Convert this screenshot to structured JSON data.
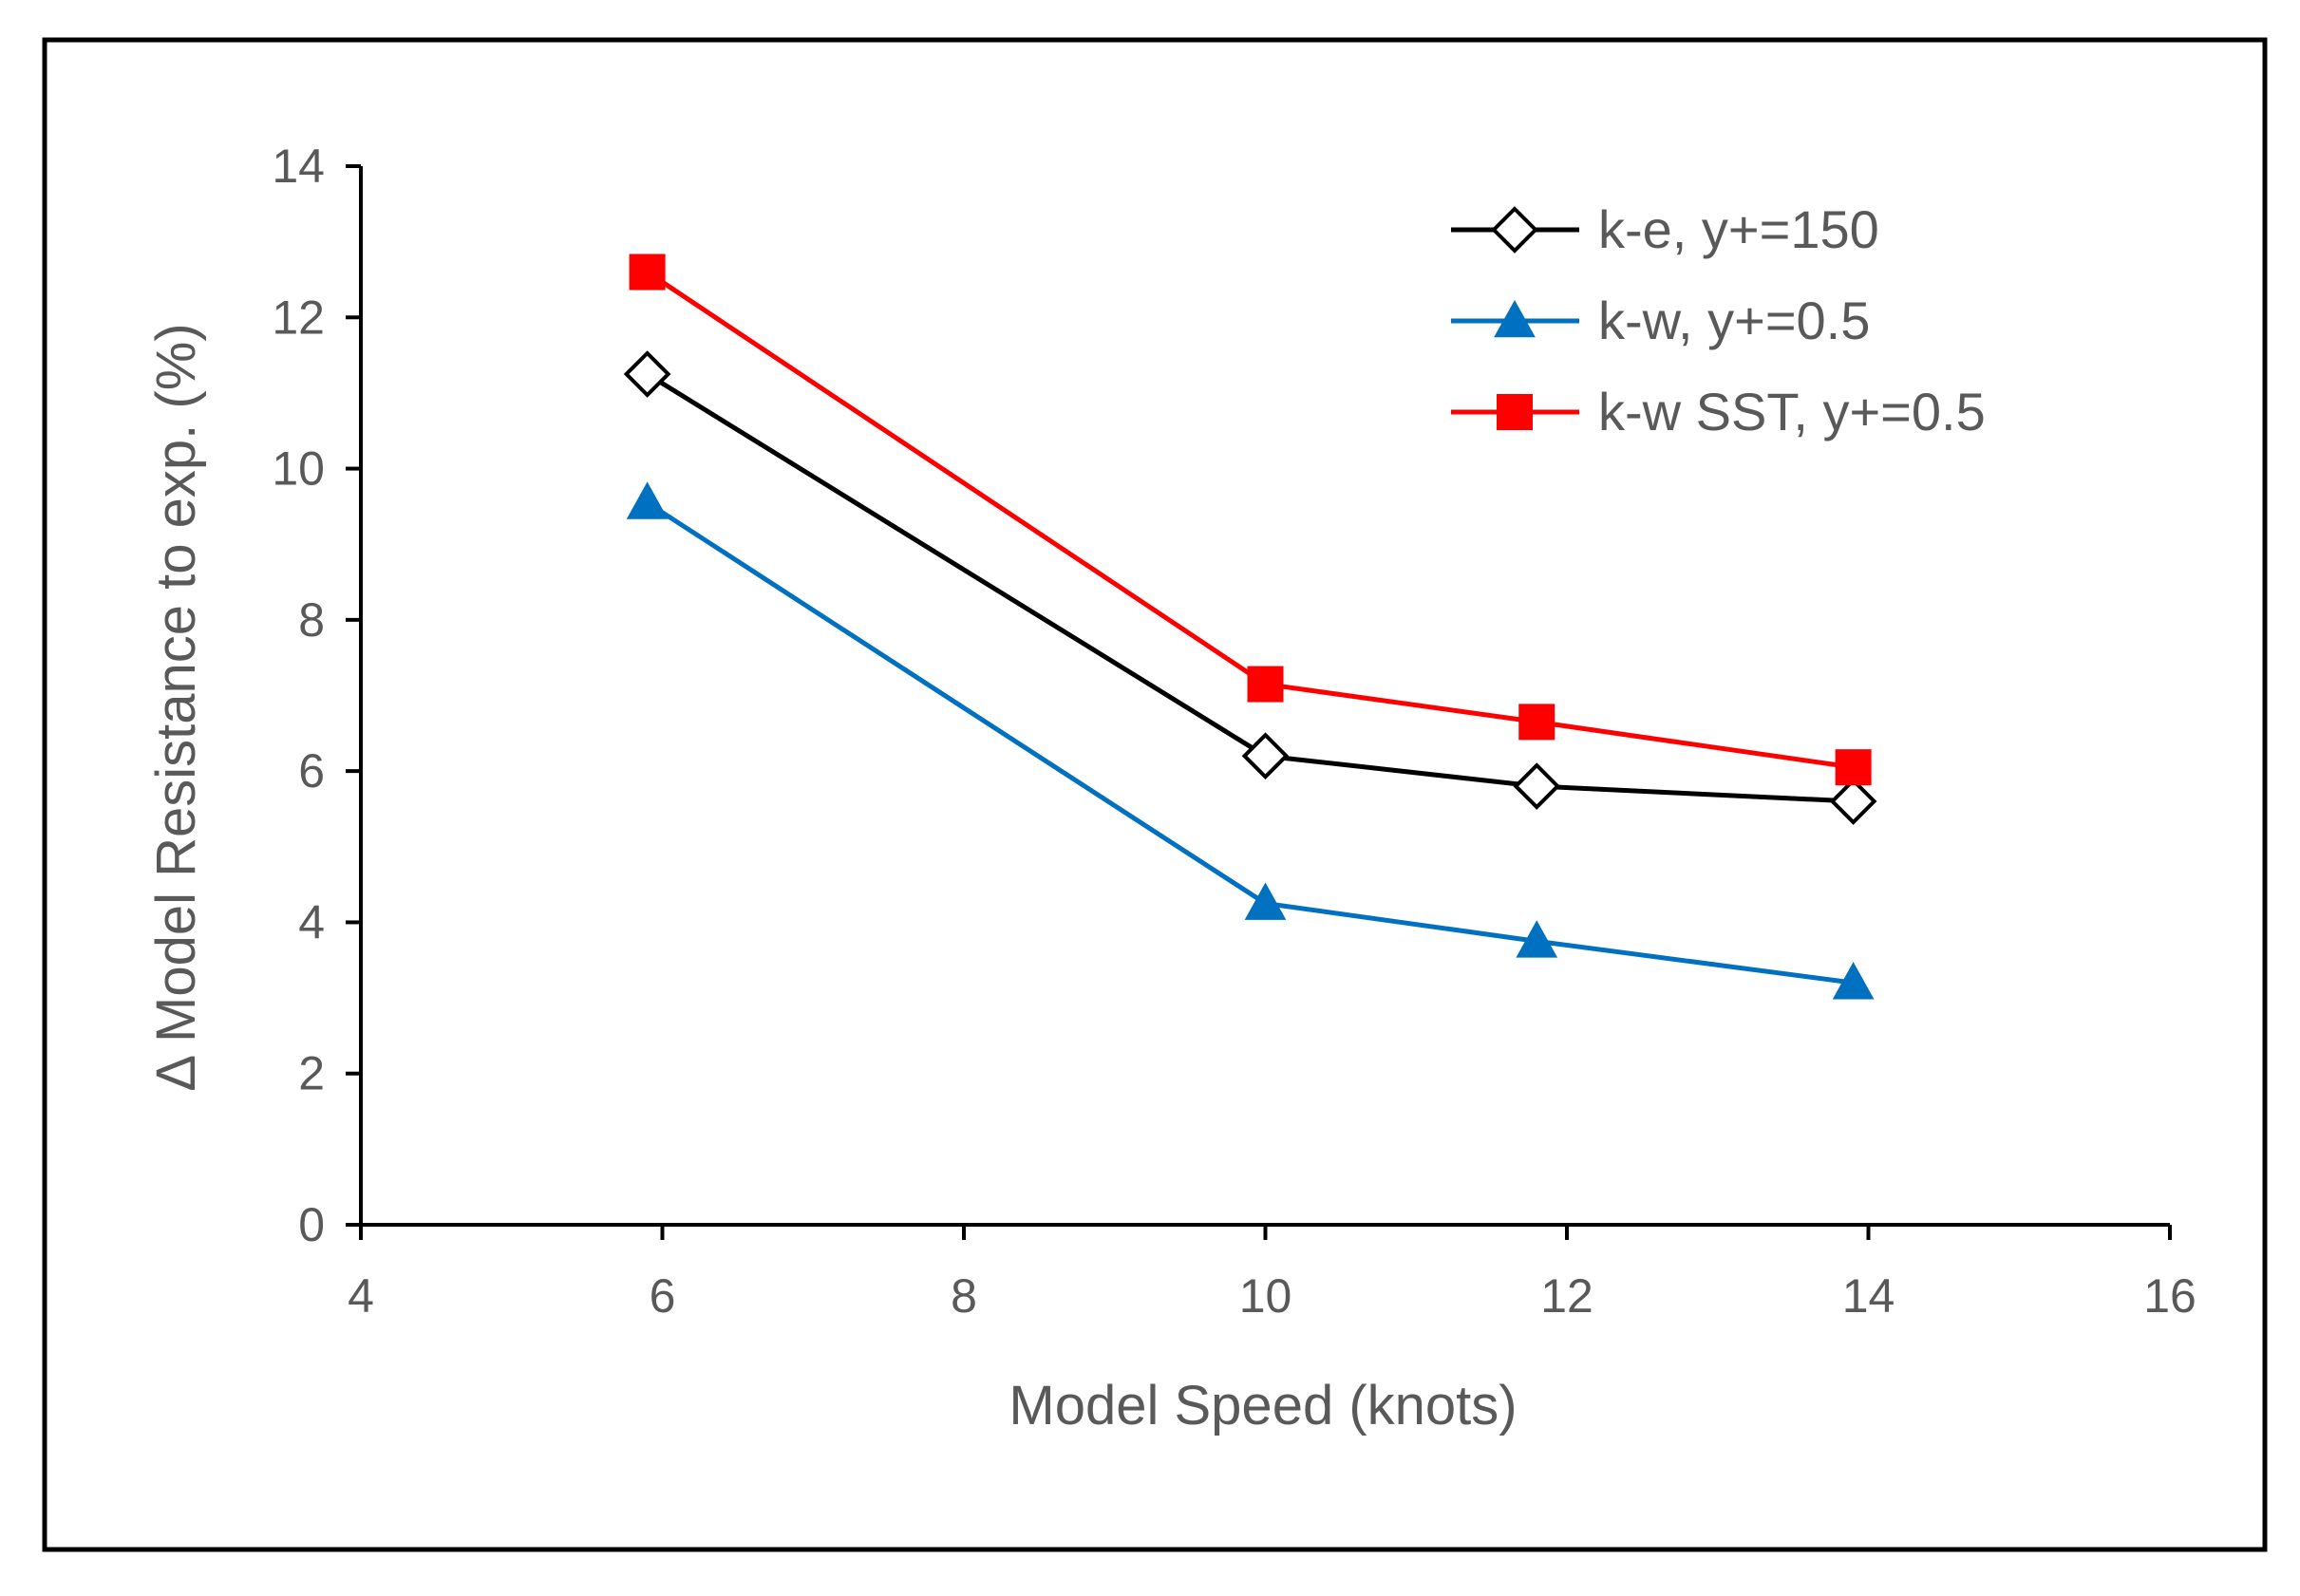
{
  "chart_data": {
    "type": "line",
    "title": "",
    "xlabel": "Model Speed (knots)",
    "ylabel": "Δ Model Resistance to exp. (%)",
    "xlim": [
      4,
      16
    ],
    "ylim": [
      0,
      14
    ],
    "xticks": [
      4,
      6,
      8,
      10,
      12,
      14,
      16
    ],
    "yticks": [
      0,
      2,
      4,
      6,
      8,
      10,
      12,
      14
    ],
    "grid": false,
    "legend_position": "top-right",
    "series": [
      {
        "name": "k-e, y+=150",
        "color": "#000000",
        "marker": "diamond-open",
        "x": [
          5.9,
          10.0,
          11.8,
          13.9
        ],
        "y": [
          11.25,
          6.2,
          5.8,
          5.6
        ]
      },
      {
        "name": "k-w, y+=0.5",
        "color": "#0070C0",
        "marker": "triangle",
        "x": [
          5.9,
          10.0,
          11.8,
          13.9
        ],
        "y": [
          9.55,
          4.25,
          3.75,
          3.2
        ]
      },
      {
        "name": "k-w SST, y+=0.5",
        "color": "#FF0000",
        "marker": "square",
        "x": [
          5.9,
          10.0,
          11.8,
          13.9
        ],
        "y": [
          12.6,
          7.15,
          6.65,
          6.05
        ]
      }
    ]
  }
}
